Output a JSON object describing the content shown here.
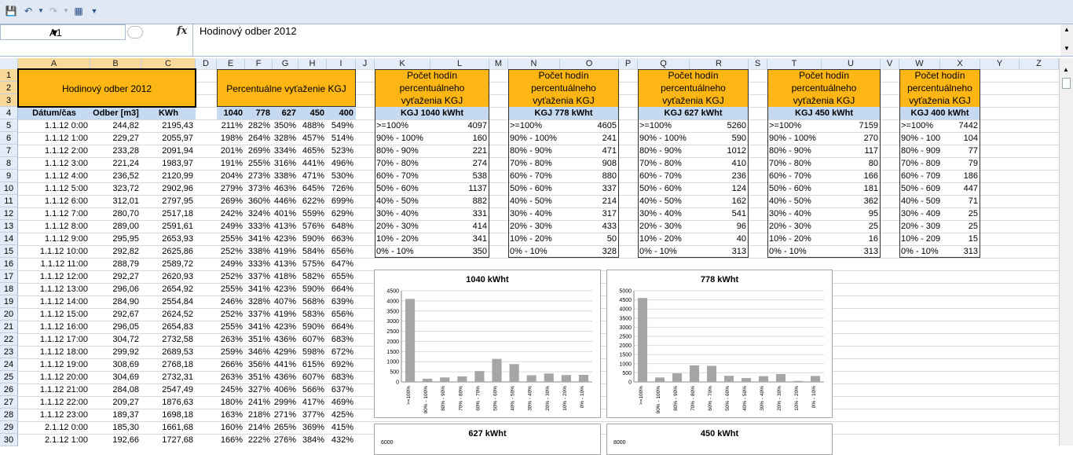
{
  "namebox": "A1",
  "formula": "Hodinový odber 2012",
  "fx": "fx",
  "columns": [
    "A",
    "B",
    "C",
    "D",
    "E",
    "F",
    "G",
    "H",
    "I",
    "J",
    "K",
    "L",
    "M",
    "N",
    "O",
    "P",
    "Q",
    "R",
    "S",
    "T",
    "U",
    "V",
    "W",
    "X",
    "Y",
    "Z"
  ],
  "rows": [
    "1",
    "2",
    "3",
    "4",
    "5",
    "6",
    "7",
    "8",
    "9",
    "10",
    "11",
    "12",
    "13",
    "14",
    "15",
    "16",
    "17",
    "18",
    "19",
    "20",
    "21",
    "22",
    "23",
    "24",
    "25",
    "26",
    "27",
    "28",
    "29",
    "30"
  ],
  "title_block": "Hodinový odber 2012",
  "headers": {
    "date": "Dátum/čas",
    "odber": "Odber [m3]",
    "kwh": "KWh"
  },
  "pct_title": "Percentuálne vyťaženie KGJ",
  "pct_headers": [
    "1040",
    "778",
    "627",
    "450",
    "400"
  ],
  "data": [
    [
      "1.1.12 0:00",
      "244,82",
      "2195,43",
      "211%",
      "282%",
      "350%",
      "488%",
      "549%"
    ],
    [
      "1.1.12 1:00",
      "229,27",
      "2055,97",
      "198%",
      "264%",
      "328%",
      "457%",
      "514%"
    ],
    [
      "1.1.12 2:00",
      "233,28",
      "2091,94",
      "201%",
      "269%",
      "334%",
      "465%",
      "523%"
    ],
    [
      "1.1.12 3:00",
      "221,24",
      "1983,97",
      "191%",
      "255%",
      "316%",
      "441%",
      "496%"
    ],
    [
      "1.1.12 4:00",
      "236,52",
      "2120,99",
      "204%",
      "273%",
      "338%",
      "471%",
      "530%"
    ],
    [
      "1.1.12 5:00",
      "323,72",
      "2902,96",
      "279%",
      "373%",
      "463%",
      "645%",
      "726%"
    ],
    [
      "1.1.12 6:00",
      "312,01",
      "2797,95",
      "269%",
      "360%",
      "446%",
      "622%",
      "699%"
    ],
    [
      "1.1.12 7:00",
      "280,70",
      "2517,18",
      "242%",
      "324%",
      "401%",
      "559%",
      "629%"
    ],
    [
      "1.1.12 8:00",
      "289,00",
      "2591,61",
      "249%",
      "333%",
      "413%",
      "576%",
      "648%"
    ],
    [
      "1.1.12 9:00",
      "295,95",
      "2653,93",
      "255%",
      "341%",
      "423%",
      "590%",
      "663%"
    ],
    [
      "1.1.12 10:00",
      "292,82",
      "2625,86",
      "252%",
      "338%",
      "419%",
      "584%",
      "656%"
    ],
    [
      "1.1.12 11:00",
      "288,79",
      "2589,72",
      "249%",
      "333%",
      "413%",
      "575%",
      "647%"
    ],
    [
      "1.1.12 12:00",
      "292,27",
      "2620,93",
      "252%",
      "337%",
      "418%",
      "582%",
      "655%"
    ],
    [
      "1.1.12 13:00",
      "296,06",
      "2654,92",
      "255%",
      "341%",
      "423%",
      "590%",
      "664%"
    ],
    [
      "1.1.12 14:00",
      "284,90",
      "2554,84",
      "246%",
      "328%",
      "407%",
      "568%",
      "639%"
    ],
    [
      "1.1.12 15:00",
      "292,67",
      "2624,52",
      "252%",
      "337%",
      "419%",
      "583%",
      "656%"
    ],
    [
      "1.1.12 16:00",
      "296,05",
      "2654,83",
      "255%",
      "341%",
      "423%",
      "590%",
      "664%"
    ],
    [
      "1.1.12 17:00",
      "304,72",
      "2732,58",
      "263%",
      "351%",
      "436%",
      "607%",
      "683%"
    ],
    [
      "1.1.12 18:00",
      "299,92",
      "2689,53",
      "259%",
      "346%",
      "429%",
      "598%",
      "672%"
    ],
    [
      "1.1.12 19:00",
      "308,69",
      "2768,18",
      "266%",
      "356%",
      "441%",
      "615%",
      "692%"
    ],
    [
      "1.1.12 20:00",
      "304,69",
      "2732,31",
      "263%",
      "351%",
      "436%",
      "607%",
      "683%"
    ],
    [
      "1.1.12 21:00",
      "284,08",
      "2547,49",
      "245%",
      "327%",
      "406%",
      "566%",
      "637%"
    ],
    [
      "1.1.12 22:00",
      "209,27",
      "1876,63",
      "180%",
      "241%",
      "299%",
      "417%",
      "469%"
    ],
    [
      "1.1.12 23:00",
      "189,37",
      "1698,18",
      "163%",
      "218%",
      "271%",
      "377%",
      "425%"
    ],
    [
      "2.1.12 0:00",
      "185,30",
      "1661,68",
      "160%",
      "214%",
      "265%",
      "369%",
      "415%"
    ],
    [
      "2.1.12 1:00",
      "192,66",
      "1727,68",
      "166%",
      "222%",
      "276%",
      "384%",
      "432%"
    ]
  ],
  "count_title": "Počet hodín percentuálneho vyťaženia KGJ",
  "count_title_lines": [
    "Počet hodín",
    "percentuálneho",
    "vyťaženia KGJ"
  ],
  "blocks": [
    {
      "name": "KGJ 1040 kWht",
      "values": [
        "4097",
        "160",
        "221",
        "274",
        "538",
        "1137",
        "882",
        "331",
        "414",
        "341",
        "350"
      ]
    },
    {
      "name": "KGJ 778 kWht",
      "values": [
        "4605",
        "241",
        "471",
        "908",
        "880",
        "337",
        "214",
        "317",
        "433",
        "50",
        "328"
      ]
    },
    {
      "name": "KGJ 627 kWht",
      "values": [
        "5260",
        "590",
        "1012",
        "410",
        "236",
        "124",
        "162",
        "541",
        "96",
        "40",
        "313"
      ]
    },
    {
      "name": "KGJ 450 kWht",
      "values": [
        "7159",
        "270",
        "117",
        "80",
        "166",
        "181",
        "362",
        "95",
        "25",
        "16",
        "313"
      ]
    },
    {
      "name": "KGJ 400 kWht",
      "values": [
        "7442",
        "104",
        "77",
        "79",
        "186",
        "447",
        "71",
        "25",
        "25",
        "15",
        "313"
      ]
    }
  ],
  "ranges": [
    ">=100%",
    "90% - 100%",
    "80% - 90%",
    "70% - 80%",
    "60% - 70%",
    "50% - 60%",
    "40% - 50%",
    "30% - 40%",
    "20% - 30%",
    "10% - 20%",
    "0% - 10%"
  ],
  "ranges_narrow": [
    ">=100%",
    "90% - 100",
    "80% - 909",
    "70% - 809",
    "60% - 709",
    "50% - 609",
    "40% - 509",
    "30% - 409",
    "20% - 309",
    "10% - 209",
    "0% - 10%"
  ],
  "chart_data": [
    {
      "type": "bar",
      "title": "1040 kWht",
      "categories": [
        ">=100%",
        "90% - 100%",
        "80% - 90%",
        "70% - 80%",
        "60% - 70%",
        "50% - 60%",
        "40% - 50%",
        "30% - 40%",
        "20% - 30%",
        "10% - 20%",
        "0% - 10%"
      ],
      "values": [
        4097,
        160,
        221,
        274,
        538,
        1137,
        882,
        331,
        414,
        341,
        350
      ],
      "ylim": [
        0,
        4500
      ],
      "ticks": [
        "0",
        "500",
        "1000",
        "1500",
        "2000",
        "2500",
        "3000",
        "3500",
        "4000",
        "4500"
      ],
      "bar_color": "#a6a6a6"
    },
    {
      "type": "bar",
      "title": "778 kWht",
      "categories": [
        ">=100%",
        "90% - 100%",
        "80% - 90%",
        "70% - 80%",
        "60% - 70%",
        "50% - 60%",
        "40% - 50%",
        "30% - 40%",
        "20% - 30%",
        "10% - 20%",
        "0% - 10%"
      ],
      "values": [
        4605,
        241,
        471,
        908,
        880,
        337,
        214,
        317,
        433,
        50,
        328
      ],
      "ylim": [
        0,
        5000
      ],
      "ticks": [
        "0",
        "500",
        "1000",
        "1500",
        "2000",
        "2500",
        "3000",
        "3500",
        "4000",
        "4500",
        "5000"
      ],
      "bar_color": "#a6a6a6"
    },
    {
      "type": "bar",
      "title": "627 kWht",
      "categories": [],
      "values": [],
      "ylim": [
        0,
        6000
      ],
      "ticks": [
        "6000"
      ],
      "bar_color": "#a6a6a6"
    },
    {
      "type": "bar",
      "title": "450 kWht",
      "categories": [],
      "values": [],
      "ylim": [
        0,
        8000
      ],
      "ticks": [
        "8000"
      ],
      "bar_color": "#a6a6a6"
    }
  ]
}
